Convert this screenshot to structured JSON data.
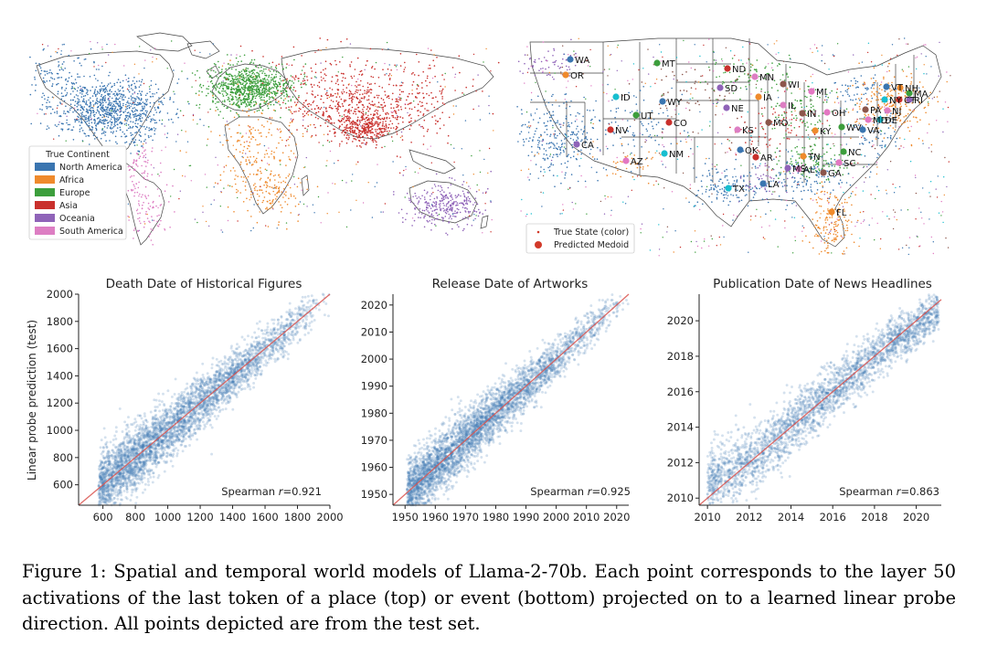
{
  "figure": {
    "caption": "Figure 1: Spatial and temporal world models of Llama-2-70b. Each point corresponds to the layer 50 activations of the last token of a place (top) or event (bottom) projected on to a learned linear probe direction. All points depicted are from the test set."
  },
  "world_map": {
    "legend_title": "True Continent",
    "legend": [
      {
        "label": "North America",
        "color": "#3a75b0"
      },
      {
        "label": "Africa",
        "color": "#ef8a2c"
      },
      {
        "label": "Europe",
        "color": "#3c9e3c"
      },
      {
        "label": "Asia",
        "color": "#c9302c"
      },
      {
        "label": "Oceania",
        "color": "#8f63b8"
      },
      {
        "label": "South America",
        "color": "#dd7ec3"
      }
    ]
  },
  "us_map": {
    "legend": [
      {
        "label": "True State (color)",
        "marker": "small-dot",
        "color": "#d23a2a"
      },
      {
        "label": "Predicted Medoid",
        "marker": "large-dot",
        "color": "#d23a2a"
      }
    ],
    "states": [
      "WA",
      "OR",
      "MT",
      "ND",
      "SD",
      "MN",
      "WI",
      "MI",
      "ID",
      "WY",
      "IA",
      "UT",
      "CO",
      "NE",
      "IL",
      "IN",
      "OH",
      "NY",
      "VT",
      "NH",
      "MA",
      "CT",
      "RI",
      "NJ",
      "PA",
      "MD",
      "DE",
      "VA",
      "KY",
      "WV",
      "NV",
      "CA",
      "KS",
      "MO",
      "AZ",
      "NM",
      "OK",
      "TN",
      "NC",
      "AR",
      "MS",
      "AL",
      "GA",
      "SC",
      "TX",
      "LA",
      "FL"
    ]
  },
  "chart_data": [
    {
      "type": "scatter",
      "title": "Death Date of Historical Figures",
      "ylabel": "Linear probe prediction (test)",
      "xlabel": "",
      "xlim": [
        450,
        2000
      ],
      "ylim": [
        450,
        2000
      ],
      "xticks": [
        600,
        800,
        1000,
        1200,
        1400,
        1600,
        1800,
        2000
      ],
      "yticks": [
        600,
        800,
        1000,
        1200,
        1400,
        1600,
        1800,
        2000
      ],
      "annotation": {
        "prefix": "Spearman ",
        "var": "r",
        "value": "=0.921"
      },
      "spearman_r": 0.921,
      "reference_line": "y = x",
      "point_color": "#3a75b0",
      "line_color": "#d9534f"
    },
    {
      "type": "scatter",
      "title": "Release Date of Artworks",
      "ylabel": "",
      "xlabel": "",
      "xlim": [
        1946,
        2024
      ],
      "ylim": [
        1946,
        2024
      ],
      "xticks": [
        1950,
        1960,
        1970,
        1980,
        1990,
        2000,
        2010,
        2020
      ],
      "yticks": [
        1950,
        1960,
        1970,
        1980,
        1990,
        2000,
        2010,
        2020
      ],
      "annotation": {
        "prefix": "Spearman ",
        "var": "r",
        "value": "=0.925"
      },
      "spearman_r": 0.925,
      "reference_line": "y = x",
      "point_color": "#3a75b0",
      "line_color": "#d9534f"
    },
    {
      "type": "scatter",
      "title": "Publication Date of News Headlines",
      "ylabel": "",
      "xlabel": "",
      "xlim": [
        2009.6,
        2021.2
      ],
      "ylim": [
        2009.6,
        2021.5
      ],
      "xticks": [
        2010,
        2012,
        2014,
        2016,
        2018,
        2020
      ],
      "yticks": [
        2010,
        2012,
        2014,
        2016,
        2018,
        2020
      ],
      "annotation": {
        "prefix": "Spearman ",
        "var": "r",
        "value": "=0.863"
      },
      "spearman_r": 0.863,
      "reference_line": "y = x",
      "point_color": "#3a75b0",
      "line_color": "#d9534f"
    }
  ]
}
